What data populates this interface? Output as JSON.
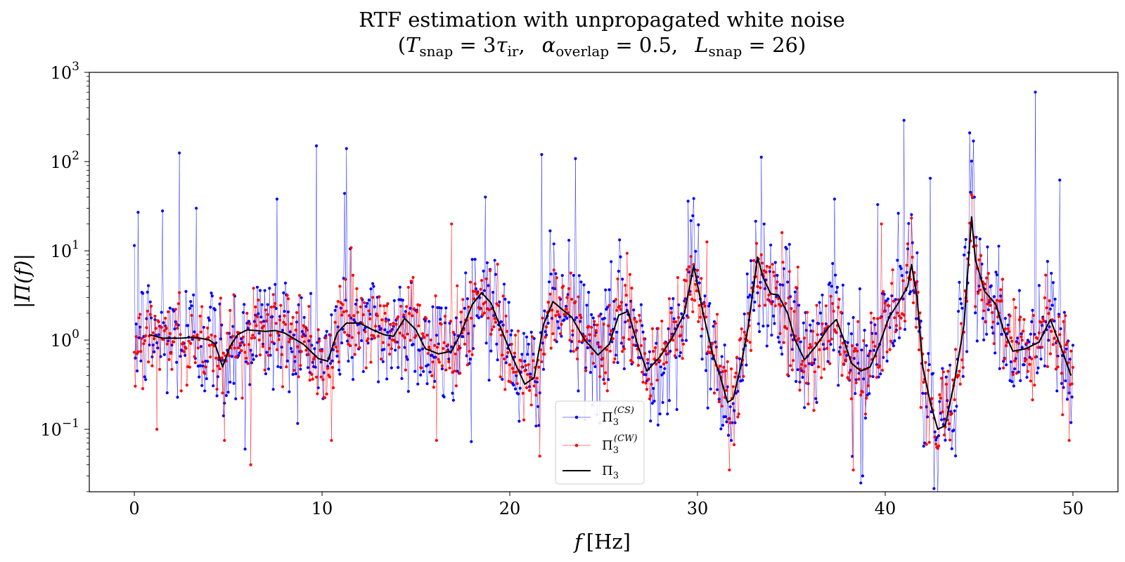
{
  "chart_data": {
    "type": "line",
    "title": "RTF estimation with unpropagated white noise",
    "subtitle": {
      "open": "(",
      "t_sym": "T",
      "t_sub": "snap",
      "t_eq": " = 3",
      "tau_sym": "τ",
      "tau_sub": "ir",
      "comma1": ",",
      "alpha_sym": "α",
      "alpha_sub": "overlap",
      "alpha_eq": " = 0.5,",
      "l_sym": "L",
      "l_sub": "snap",
      "l_eq": " = 26)"
    },
    "xlabel": {
      "var": "f",
      "unit": "[Hz]"
    },
    "ylabel": "|Π(f)|",
    "x_ticks": [
      "0",
      "10",
      "20",
      "30",
      "40",
      "50"
    ],
    "y_ticks": [
      {
        "base": "10",
        "exp": "−1",
        "value": -1
      },
      {
        "base": "10",
        "exp": "0",
        "value": 0
      },
      {
        "base": "10",
        "exp": "1",
        "value": 1
      },
      {
        "base": "10",
        "exp": "2",
        "value": 2
      },
      {
        "base": "10",
        "exp": "3",
        "value": 3
      }
    ],
    "xlim": [
      -2.4,
      52.4
    ],
    "ylim_log10": [
      -1.7,
      3.0
    ],
    "y_scale": "log",
    "grid": false,
    "legend_position": "bottom-center",
    "colors": {
      "cs": "#0000ff",
      "cw": "#ff0000",
      "pi3": "#000000"
    },
    "series": [
      {
        "name": "Π3(CS)",
        "symbol": "Π",
        "sub": "3",
        "sup": "(CS)",
        "style": "thin line with dot markers",
        "x_step": 0.05,
        "x_range": [
          0,
          50
        ],
        "peaks": [
          [
            0.2,
            27
          ],
          [
            1.5,
            28
          ],
          [
            2.4,
            125
          ],
          [
            3.3,
            30
          ],
          [
            7.6,
            38
          ],
          [
            9.7,
            150
          ],
          [
            11.3,
            140
          ],
          [
            11.2,
            44
          ],
          [
            18.7,
            40
          ],
          [
            21.7,
            120
          ],
          [
            23.5,
            108
          ],
          [
            29.5,
            36
          ],
          [
            33.4,
            112
          ],
          [
            37.3,
            38
          ],
          [
            39.6,
            33
          ],
          [
            41.0,
            290
          ],
          [
            42.4,
            65
          ],
          [
            44.5,
            210
          ],
          [
            44.7,
            170
          ],
          [
            48.0,
            600
          ],
          [
            49.3,
            62
          ]
        ],
        "dips": [
          [
            5.9,
            0.06
          ],
          [
            31.8,
            0.075
          ],
          [
            38.7,
            0.025
          ],
          [
            38.8,
            0.03
          ]
        ]
      },
      {
        "name": "Π3(CW)",
        "symbol": "Π",
        "sub": "3",
        "sup": "(CW)",
        "style": "thin line with dot markers",
        "x_step": 0.05,
        "x_range": [
          0,
          50
        ],
        "peaks": [
          [
            16.9,
            20
          ],
          [
            34.5,
            16
          ],
          [
            39.8,
            20
          ],
          [
            41.2,
            12
          ]
        ],
        "dips": [
          [
            1.2,
            0.1
          ],
          [
            4.8,
            0.075
          ],
          [
            6.2,
            0.04
          ],
          [
            10.5,
            0.075
          ],
          [
            16.1,
            0.075
          ],
          [
            21.6,
            0.05
          ],
          [
            31.7,
            0.035
          ],
          [
            38.3,
            0.035
          ],
          [
            49.8,
            0.075
          ]
        ]
      },
      {
        "name": "Π3",
        "symbol": "Π",
        "sub": "3",
        "style": "solid line",
        "x": [
          0.8,
          1.5,
          2.5,
          3.0,
          3.5,
          4.0,
          4.3,
          4.7,
          5.1,
          5.5,
          6.0,
          7.0,
          7.5,
          8.0,
          9.0,
          9.8,
          10.3,
          10.8,
          11.3,
          12.0,
          12.7,
          13.3,
          13.8,
          14.4,
          15.0,
          15.5,
          16.2,
          16.9,
          17.4,
          18.0,
          18.5,
          19.0,
          19.5,
          20.2,
          20.8,
          21.3,
          21.8,
          22.3,
          22.8,
          23.3,
          24.0,
          24.7,
          25.3,
          25.8,
          26.3,
          26.8,
          27.3,
          28.0,
          28.7,
          29.3,
          29.8,
          30.3,
          30.8,
          31.2,
          31.6,
          31.9,
          32.3,
          32.7,
          33.2,
          33.5,
          33.9,
          34.3,
          34.8,
          35.2,
          35.7,
          36.3,
          37.0,
          37.4,
          37.8,
          38.2,
          38.7,
          39.2,
          39.7,
          40.2,
          40.7,
          41.2,
          41.4,
          41.7,
          42.0,
          42.4,
          42.8,
          43.2,
          43.7,
          44.2,
          44.5,
          44.6,
          44.8,
          45.3,
          45.9,
          46.3,
          46.8,
          47.5,
          48.2,
          48.8,
          49.3,
          49.9
        ],
        "y": [
          1.15,
          1.05,
          1.05,
          1.07,
          1.05,
          1.0,
          0.9,
          0.5,
          0.85,
          1.15,
          1.3,
          1.25,
          1.28,
          1.2,
          0.9,
          0.62,
          0.58,
          1.2,
          1.55,
          1.55,
          1.3,
          1.15,
          1.1,
          1.75,
          1.3,
          0.8,
          0.7,
          0.75,
          1.2,
          2.5,
          3.4,
          2.6,
          1.4,
          0.6,
          0.32,
          0.38,
          1.5,
          2.7,
          2.2,
          1.8,
          1.0,
          0.68,
          0.9,
          1.9,
          2.1,
          0.9,
          0.45,
          0.65,
          1.1,
          2.0,
          6.8,
          2.0,
          0.7,
          0.4,
          0.2,
          0.22,
          0.5,
          1.4,
          8.5,
          5.0,
          3.3,
          3.2,
          2.0,
          1.0,
          0.6,
          0.85,
          1.4,
          1.7,
          1.0,
          0.55,
          0.45,
          0.5,
          0.9,
          1.8,
          2.6,
          4.0,
          7.0,
          3.0,
          0.5,
          0.2,
          0.1,
          0.11,
          0.35,
          1.5,
          12.0,
          24.0,
          8.0,
          3.5,
          2.5,
          1.3,
          0.75,
          0.8,
          0.95,
          1.7,
          0.9,
          0.4
        ]
      }
    ]
  }
}
